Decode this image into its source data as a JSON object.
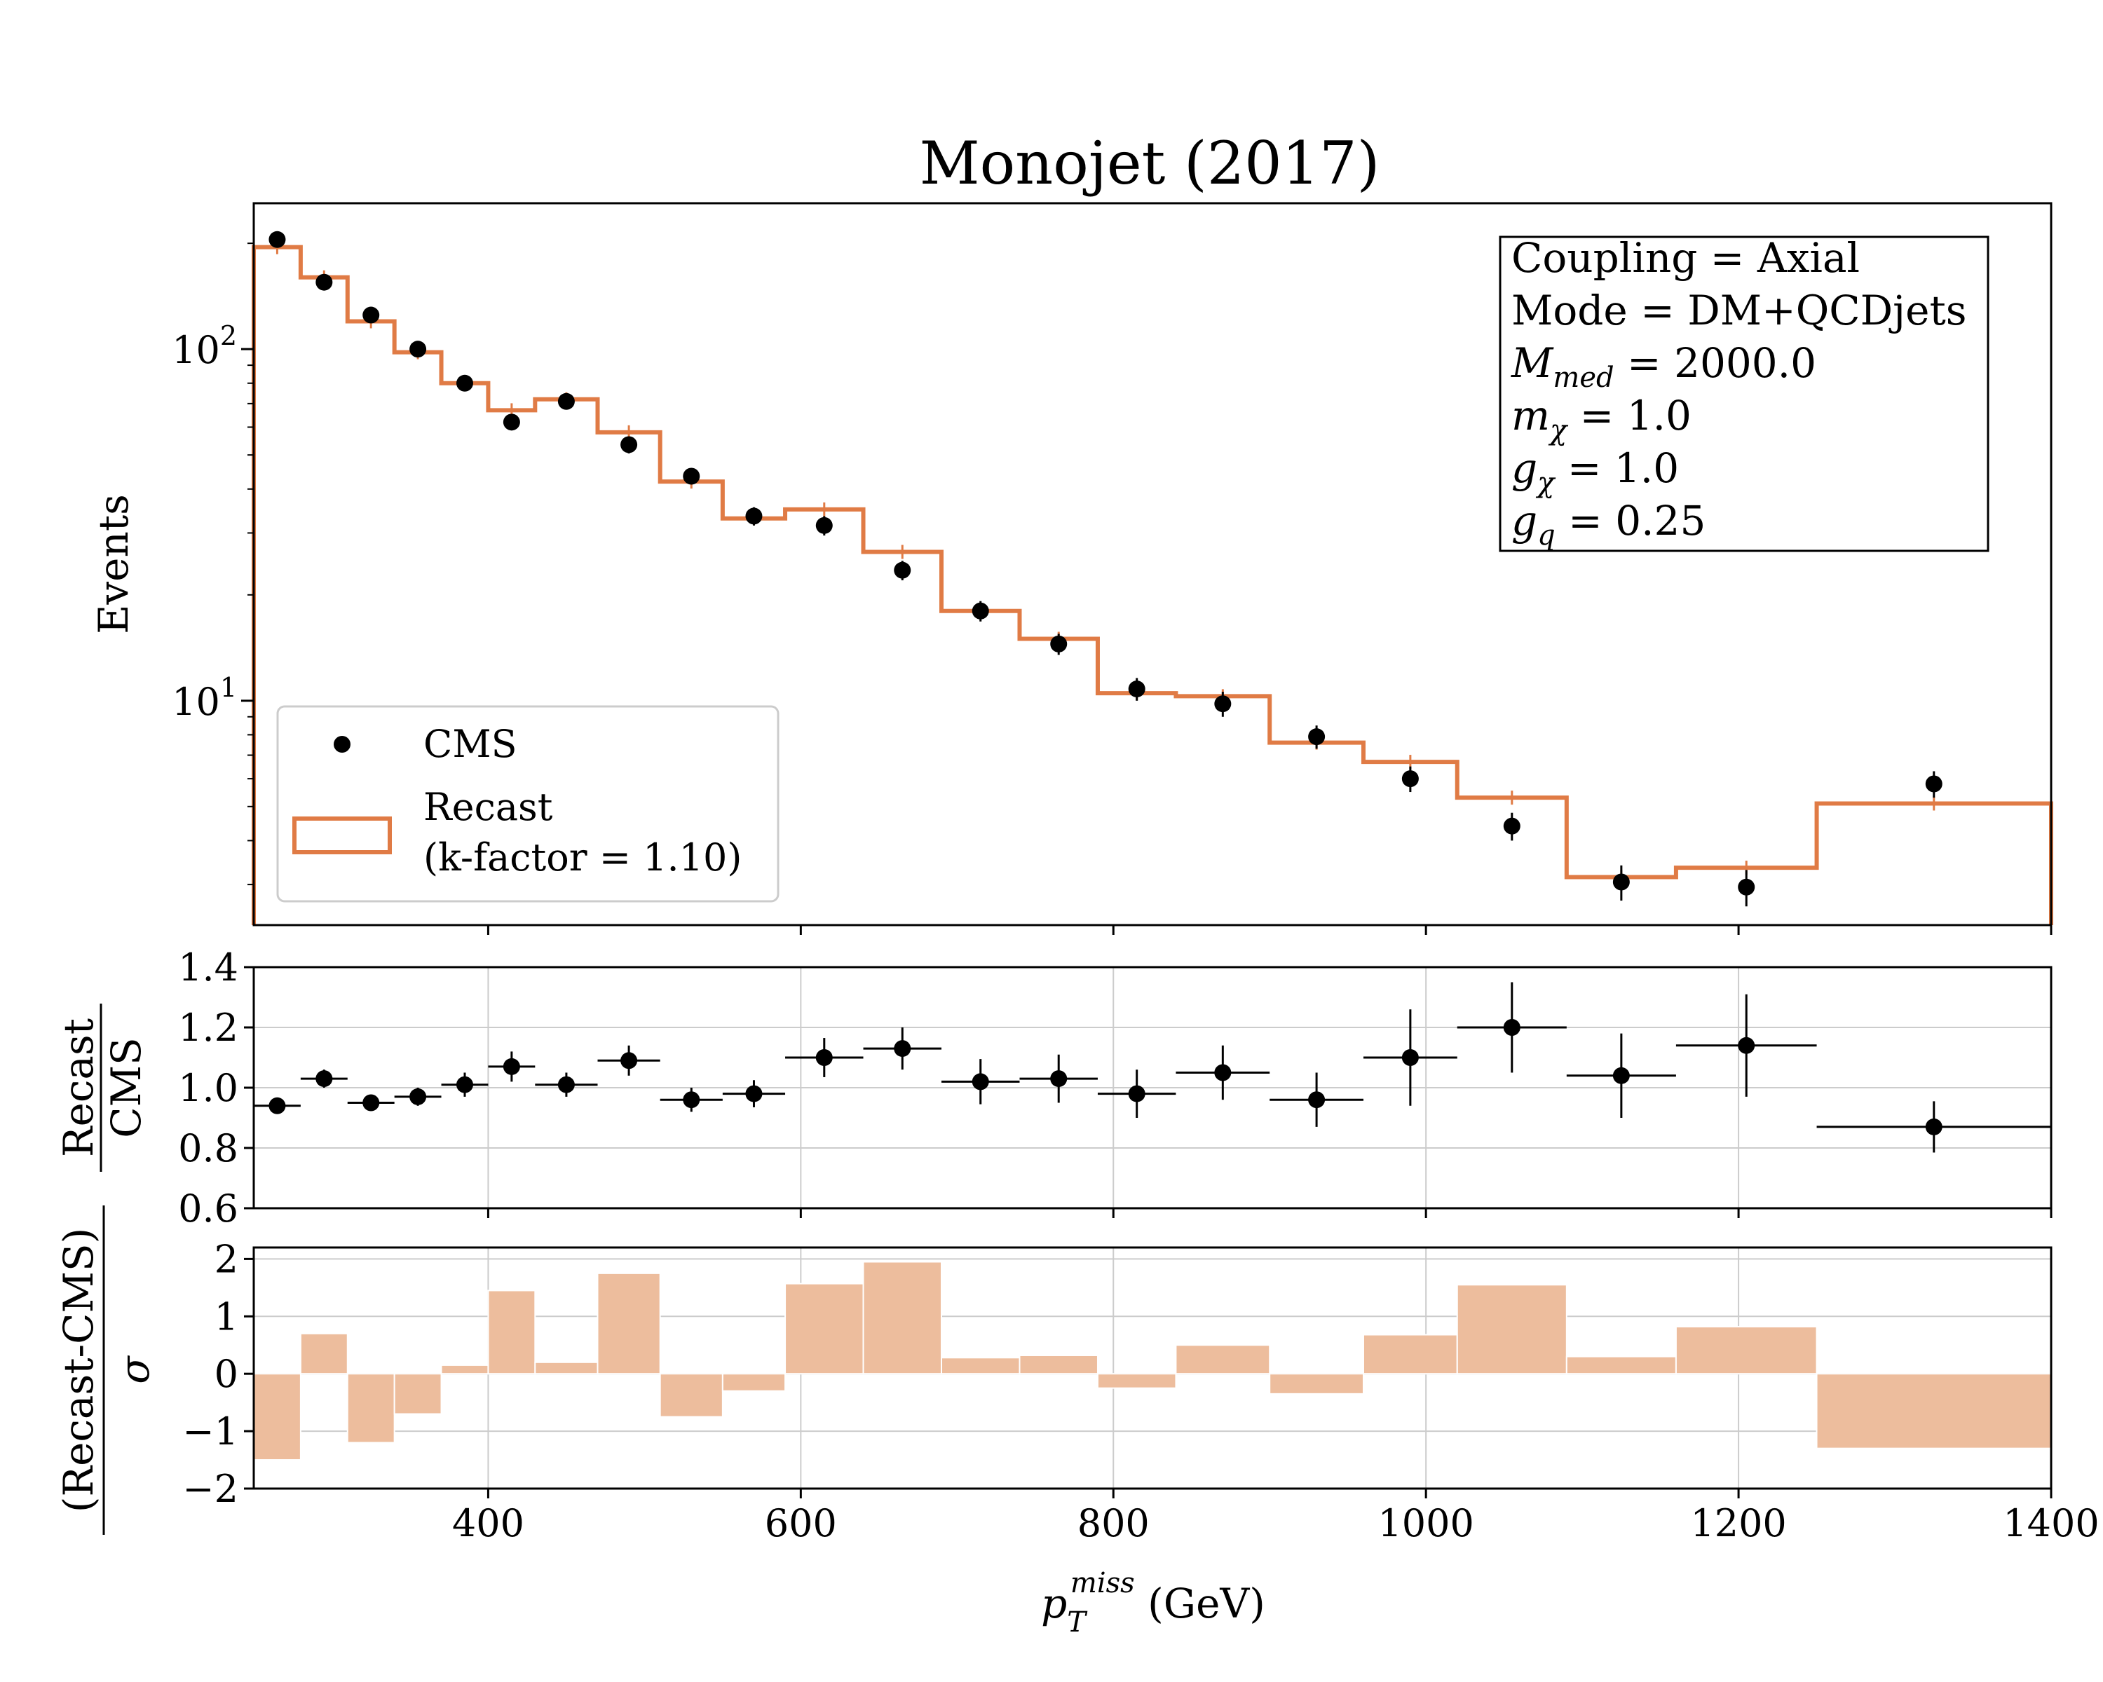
{
  "title": "Monojet (2017)",
  "colors": {
    "recast": "#e07b45",
    "pull": "#edbd9d",
    "cms": "#000000",
    "grid": "#cccccc"
  },
  "axes": {
    "top_ylabel": "Events",
    "ratio_ylabel_num": "Recast",
    "ratio_ylabel_den": "CMS",
    "pull_ylabel_num": "(Recast-CMS)",
    "pull_ylabel_den": "σ",
    "xlabel_main": "p",
    "xlabel_sub": "T",
    "xlabel_sup": "miss",
    "xlabel_unit": " (GeV)",
    "x_ticks": [
      "400",
      "600",
      "800",
      "1000",
      "1200",
      "1400"
    ],
    "top_ytick_base": "10",
    "top_ytick_exps": [
      "1",
      "2"
    ],
    "ratio_yticks": [
      "0.6",
      "0.8",
      "1.0",
      "1.2",
      "1.4"
    ],
    "pull_yticks": [
      "−2",
      "−1",
      "0",
      "1",
      "2"
    ]
  },
  "info_box": [
    {
      "kind": "text",
      "text": "Coupling = Axial"
    },
    {
      "kind": "text",
      "text": "Mode = DM+QCDjets"
    },
    {
      "kind": "math",
      "sym": "M",
      "sub": "med",
      "rest": " = 2000.0"
    },
    {
      "kind": "math",
      "sym": "m",
      "sub": "χ",
      "rest": " = 1.0"
    },
    {
      "kind": "math",
      "sym": "g",
      "sub": "χ",
      "rest": " = 1.0"
    },
    {
      "kind": "math",
      "sym": "g",
      "sub": "q",
      "rest": " = 0.25"
    }
  ],
  "legend": {
    "cms": "CMS",
    "recast_line1": "Recast",
    "recast_line2": "(k-factor = 1.10)"
  },
  "chart_data": {
    "type": "histogram",
    "title": "Monojet (2017)",
    "xlim": [
      250,
      1400
    ],
    "bin_edges": [
      250,
      280,
      310,
      340,
      370,
      400,
      430,
      470,
      510,
      550,
      590,
      640,
      690,
      740,
      790,
      840,
      900,
      960,
      1020,
      1090,
      1160,
      1250,
      1400
    ],
    "top_panel": {
      "ylabel": "Events",
      "yscale": "log",
      "ylim": [
        2.3,
        260
      ],
      "series": [
        {
          "name": "Recast",
          "style": "step",
          "values": [
            195,
            160,
            120,
            98,
            80,
            67,
            72,
            58,
            42,
            33,
            35,
            26.5,
            18,
            15,
            10.5,
            10.3,
            7.6,
            6.7,
            5.3,
            3.15,
            3.35,
            5.1
          ]
        },
        {
          "name": "CMS",
          "style": "points",
          "x": [
            265,
            295,
            325,
            355,
            385,
            415,
            450,
            490,
            530,
            570,
            615,
            665,
            715,
            765,
            815,
            870,
            930,
            990,
            1055,
            1125,
            1205,
            1325
          ],
          "values": [
            205,
            155,
            125,
            100,
            80,
            62,
            71,
            53.5,
            43.5,
            33.5,
            31.5,
            23.5,
            18,
            14.5,
            10.8,
            9.8,
            7.9,
            6.0,
            4.4,
            3.05,
            2.95,
            5.8
          ],
          "err": [
            5,
            4,
            4,
            3,
            3,
            3,
            3,
            3,
            2,
            2,
            2,
            1.5,
            1.2,
            1.0,
            0.8,
            0.8,
            0.6,
            0.5,
            0.4,
            0.35,
            0.35,
            0.5
          ]
        }
      ]
    },
    "ratio_panel": {
      "ylabel": "Recast / CMS",
      "ylim": [
        0.6,
        1.4
      ],
      "grid": true,
      "x": [
        265,
        295,
        325,
        355,
        385,
        415,
        450,
        490,
        530,
        570,
        615,
        665,
        715,
        765,
        815,
        870,
        930,
        990,
        1055,
        1125,
        1205,
        1325
      ],
      "values": [
        0.94,
        1.03,
        0.95,
        0.97,
        1.01,
        1.07,
        1.01,
        1.09,
        0.96,
        0.98,
        1.1,
        1.13,
        1.02,
        1.03,
        0.98,
        1.05,
        0.96,
        1.1,
        1.2,
        1.04,
        1.14,
        0.87
      ],
      "err": [
        0.025,
        0.03,
        0.025,
        0.03,
        0.04,
        0.05,
        0.04,
        0.05,
        0.04,
        0.045,
        0.065,
        0.07,
        0.075,
        0.08,
        0.08,
        0.09,
        0.09,
        0.16,
        0.15,
        0.14,
        0.17,
        0.085
      ]
    },
    "pull_panel": {
      "ylabel": "(Recast-CMS) / σ",
      "ylim": [
        -2,
        2.2
      ],
      "grid": true,
      "style": "bars",
      "values": [
        -1.5,
        0.7,
        -1.2,
        -0.7,
        0.15,
        1.45,
        0.2,
        1.75,
        -0.75,
        -0.3,
        1.57,
        1.95,
        0.28,
        0.32,
        -0.25,
        0.5,
        -0.35,
        0.68,
        1.55,
        0.3,
        0.82,
        -1.3
      ]
    }
  }
}
